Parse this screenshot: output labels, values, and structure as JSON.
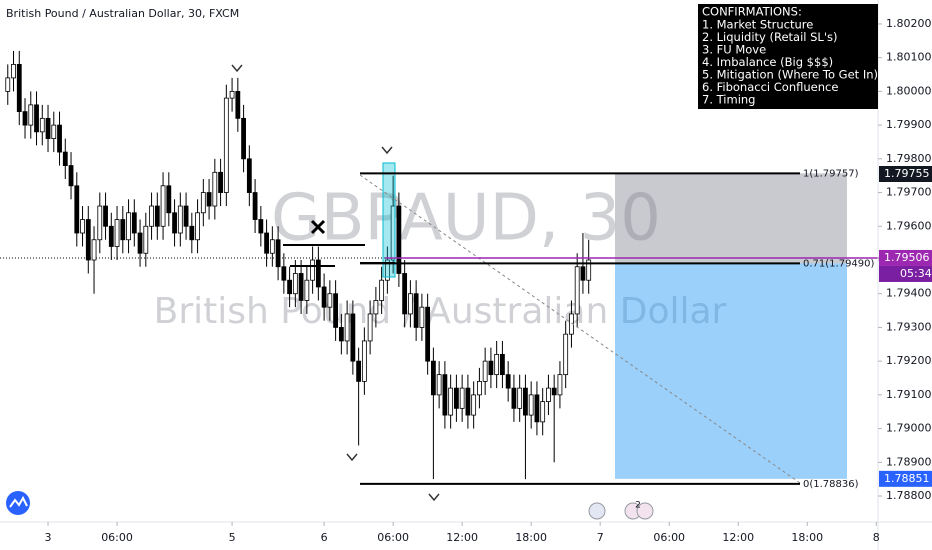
{
  "header": {
    "title": "British Pound / Australian Dollar, 30, FXCM"
  },
  "watermark": {
    "symbol": "GBPAUD, 30",
    "name": "British Pound / Australian Dollar"
  },
  "confirmations": {
    "title": "CONFIRMATIONS:",
    "items": [
      "1. Market Structure",
      "2. Liquidity (Retail SL's)",
      "3. FU Move",
      "4. Imbalance (Big $$$)",
      "5. Mitigation (Where To Get In)",
      "6. Fibonacci Confluence",
      "7. Timing"
    ]
  },
  "badge": "2",
  "countdown": "05:34",
  "chart_data": {
    "type": "candlestick",
    "up_color": "#ffffff",
    "down_color": "#000000",
    "x": [
      1,
      2,
      3,
      4,
      5,
      6,
      7,
      8,
      9,
      10,
      11,
      12,
      13,
      14,
      15,
      16,
      17,
      18,
      19,
      20,
      21,
      22,
      23,
      24,
      25,
      26,
      27,
      28,
      29,
      30,
      31,
      32,
      33,
      34,
      35,
      36,
      37,
      38,
      39,
      40,
      41,
      42,
      43,
      44,
      45,
      46,
      47,
      48,
      49,
      50,
      51,
      52,
      53,
      54,
      55,
      56,
      57,
      58,
      59,
      60,
      61,
      62,
      63,
      64,
      65,
      66,
      67,
      68,
      69,
      70,
      71,
      72,
      73,
      74,
      75,
      76,
      77,
      78,
      79,
      80,
      81,
      82,
      83,
      84,
      85,
      86,
      87,
      88,
      89,
      90,
      91,
      92,
      93,
      94,
      95,
      96,
      97,
      98,
      99,
      100,
      101,
      102
    ],
    "open": [
      1.8,
      1.8004,
      1.8008,
      1.7994,
      1.799,
      1.7996,
      1.7988,
      1.7992,
      1.7986,
      1.799,
      1.7982,
      1.7978,
      1.7972,
      1.7958,
      1.7962,
      1.795,
      1.7956,
      1.7966,
      1.796,
      1.7954,
      1.7962,
      1.7956,
      1.7964,
      1.7958,
      1.7952,
      1.796,
      1.7966,
      1.796,
      1.7972,
      1.7964,
      1.7958,
      1.7966,
      1.796,
      1.7956,
      1.7964,
      1.797,
      1.7966,
      1.7976,
      1.797,
      1.7998,
      1.8,
      1.7992,
      1.798,
      1.797,
      1.7962,
      1.7958,
      1.7952,
      1.7956,
      1.7948,
      1.7944,
      1.794,
      1.7946,
      1.7938,
      1.7944,
      1.795,
      1.7942,
      1.7936,
      1.794,
      1.793,
      1.7926,
      1.7934,
      1.792,
      1.7914,
      1.7926,
      1.7934,
      1.7938,
      1.7944,
      1.795,
      1.7966,
      1.7946,
      1.7934,
      1.794,
      1.793,
      1.7936,
      1.792,
      1.791,
      1.7916,
      1.7904,
      1.7912,
      1.7906,
      1.7912,
      1.7904,
      1.791,
      1.7914,
      1.792,
      1.7916,
      1.7922,
      1.7916,
      1.7912,
      1.7906,
      1.7912,
      1.7904,
      1.791,
      1.7902,
      1.7908,
      1.7912,
      1.791,
      1.7916,
      1.7928,
      1.7934,
      1.7948,
      1.7944
    ],
    "high": [
      1.8008,
      1.8012,
      1.8012,
      1.7998,
      1.8,
      1.8,
      1.7996,
      1.7996,
      1.7994,
      1.7994,
      1.7986,
      1.7982,
      1.7976,
      1.7966,
      1.7966,
      1.796,
      1.797,
      1.797,
      1.7964,
      1.7966,
      1.7966,
      1.7968,
      1.7968,
      1.7962,
      1.7964,
      1.797,
      1.797,
      1.7976,
      1.7976,
      1.7968,
      1.797,
      1.797,
      1.7964,
      1.7968,
      1.7974,
      1.7974,
      1.798,
      1.798,
      1.8002,
      1.8004,
      1.8004,
      1.7996,
      1.7984,
      1.7974,
      1.7966,
      1.7962,
      1.796,
      1.796,
      1.7952,
      1.7948,
      1.795,
      1.795,
      1.7948,
      1.7954,
      1.7954,
      1.7946,
      1.7944,
      1.7944,
      1.7934,
      1.7938,
      1.7938,
      1.7924,
      1.793,
      1.7938,
      1.7942,
      1.7948,
      1.7954,
      1.7975,
      1.797,
      1.795,
      1.7944,
      1.7944,
      1.794,
      1.794,
      1.7924,
      1.792,
      1.792,
      1.7916,
      1.7916,
      1.7916,
      1.7916,
      1.7914,
      1.7918,
      1.7924,
      1.7924,
      1.7926,
      1.7926,
      1.792,
      1.7916,
      1.7916,
      1.7916,
      1.7914,
      1.7914,
      1.7912,
      1.7916,
      1.7916,
      1.792,
      1.7932,
      1.7938,
      1.7952,
      1.7958,
      1.7956
    ],
    "low": [
      1.7996,
      1.8,
      1.799,
      1.7986,
      1.7986,
      1.7984,
      1.7984,
      1.7982,
      1.7982,
      1.7978,
      1.7974,
      1.7968,
      1.7954,
      1.7954,
      1.7946,
      1.794,
      1.7952,
      1.7956,
      1.795,
      1.795,
      1.7952,
      1.7952,
      1.7954,
      1.7948,
      1.7948,
      1.7956,
      1.7956,
      1.7956,
      1.796,
      1.7954,
      1.7954,
      1.7956,
      1.7952,
      1.7952,
      1.796,
      1.7962,
      1.7962,
      1.7966,
      1.7966,
      1.7994,
      1.7988,
      1.7976,
      1.7966,
      1.7958,
      1.7954,
      1.7948,
      1.7948,
      1.7944,
      1.794,
      1.7936,
      1.7936,
      1.7934,
      1.7934,
      1.794,
      1.7938,
      1.7932,
      1.7932,
      1.7926,
      1.7922,
      1.7922,
      1.7916,
      1.7895,
      1.791,
      1.7922,
      1.793,
      1.7934,
      1.794,
      1.7946,
      1.7942,
      1.793,
      1.793,
      1.7926,
      1.7926,
      1.7916,
      1.7885,
      1.7906,
      1.79,
      1.79,
      1.7902,
      1.7902,
      1.79,
      1.79,
      1.7906,
      1.791,
      1.7912,
      1.7912,
      1.7912,
      1.7908,
      1.7902,
      1.7902,
      1.7885,
      1.79,
      1.7898,
      1.7898,
      1.7904,
      1.789,
      1.7906,
      1.7912,
      1.7924,
      1.793,
      1.794,
      1.794
    ],
    "close": [
      1.8004,
      1.8008,
      1.7994,
      1.799,
      1.7996,
      1.7988,
      1.7992,
      1.7986,
      1.799,
      1.7982,
      1.7978,
      1.7972,
      1.7958,
      1.7962,
      1.795,
      1.7956,
      1.7966,
      1.796,
      1.7954,
      1.7962,
      1.7956,
      1.7964,
      1.7958,
      1.7952,
      1.796,
      1.7966,
      1.796,
      1.7972,
      1.7964,
      1.7958,
      1.7966,
      1.796,
      1.7956,
      1.7964,
      1.797,
      1.7966,
      1.7976,
      1.797,
      1.7998,
      1.8,
      1.7992,
      1.798,
      1.797,
      1.7962,
      1.7958,
      1.7952,
      1.7956,
      1.7948,
      1.7944,
      1.794,
      1.7946,
      1.7938,
      1.7944,
      1.795,
      1.7942,
      1.7936,
      1.794,
      1.793,
      1.7926,
      1.7934,
      1.792,
      1.7914,
      1.7926,
      1.7934,
      1.7938,
      1.7944,
      1.795,
      1.7966,
      1.7946,
      1.7934,
      1.794,
      1.793,
      1.7936,
      1.792,
      1.791,
      1.7916,
      1.7904,
      1.7912,
      1.7906,
      1.7912,
      1.7904,
      1.791,
      1.7914,
      1.792,
      1.7916,
      1.7922,
      1.7916,
      1.7912,
      1.7906,
      1.7912,
      1.7904,
      1.791,
      1.7902,
      1.7908,
      1.7912,
      1.791,
      1.7916,
      1.7928,
      1.7934,
      1.7948,
      1.7944,
      1.795
    ],
    "xlim": [
      -0.35,
      152.3
    ],
    "xticks": [
      {
        "value": 8,
        "label": "3"
      },
      {
        "value": 20,
        "label": "06:00"
      },
      {
        "value": 40,
        "label": "5"
      },
      {
        "value": 56,
        "label": "6"
      },
      {
        "value": 68,
        "label": "06:00"
      },
      {
        "value": 80,
        "label": "12:00"
      },
      {
        "value": 92,
        "label": "18:00"
      },
      {
        "value": 104,
        "label": "7"
      },
      {
        "value": 116,
        "label": "06:00"
      },
      {
        "value": 128,
        "label": "12:00"
      },
      {
        "value": 140,
        "label": "18:00"
      },
      {
        "value": 152,
        "label": "8"
      }
    ],
    "ylim": [
      1.78723,
      1.80271
    ],
    "yticks": [
      {
        "value": 1.802,
        "label": "1.80200"
      },
      {
        "value": 1.801,
        "label": "1.80100"
      },
      {
        "value": 1.8,
        "label": "1.80000"
      },
      {
        "value": 1.799,
        "label": "1.79900"
      },
      {
        "value": 1.798,
        "label": "1.79800"
      },
      {
        "value": 1.797,
        "label": "1.79700"
      },
      {
        "value": 1.796,
        "label": "1.79600"
      },
      {
        "value": 1.795,
        "label": "1.79500"
      },
      {
        "value": 1.794,
        "label": "1.79400"
      },
      {
        "value": 1.793,
        "label": "1.79300"
      },
      {
        "value": 1.792,
        "label": "1.79200"
      },
      {
        "value": 1.791,
        "label": "1.79100"
      },
      {
        "value": 1.79,
        "label": "1.79000"
      },
      {
        "value": 1.789,
        "label": "1.78900"
      },
      {
        "value": 1.788,
        "label": "1.78800"
      }
    ],
    "fib": [
      {
        "value": 1.79757,
        "label": "1(1.79757)"
      },
      {
        "value": 1.7949,
        "label": "0.71(1.79490)"
      },
      {
        "value": 1.78836,
        "label": "0(1.78836)"
      }
    ],
    "price_tags": [
      {
        "value": 1.79755,
        "label": "1.79755",
        "color": "#131722"
      },
      {
        "value": 1.79506,
        "label": "1.79506",
        "color": "#9c27b0"
      },
      {
        "value": 1.78851,
        "label": "1.78851",
        "color": "#2962ff"
      }
    ],
    "last_price": 1.79506,
    "target_zone": {
      "top": 1.79757,
      "entry": 1.7949,
      "bottom": 1.78851
    }
  }
}
